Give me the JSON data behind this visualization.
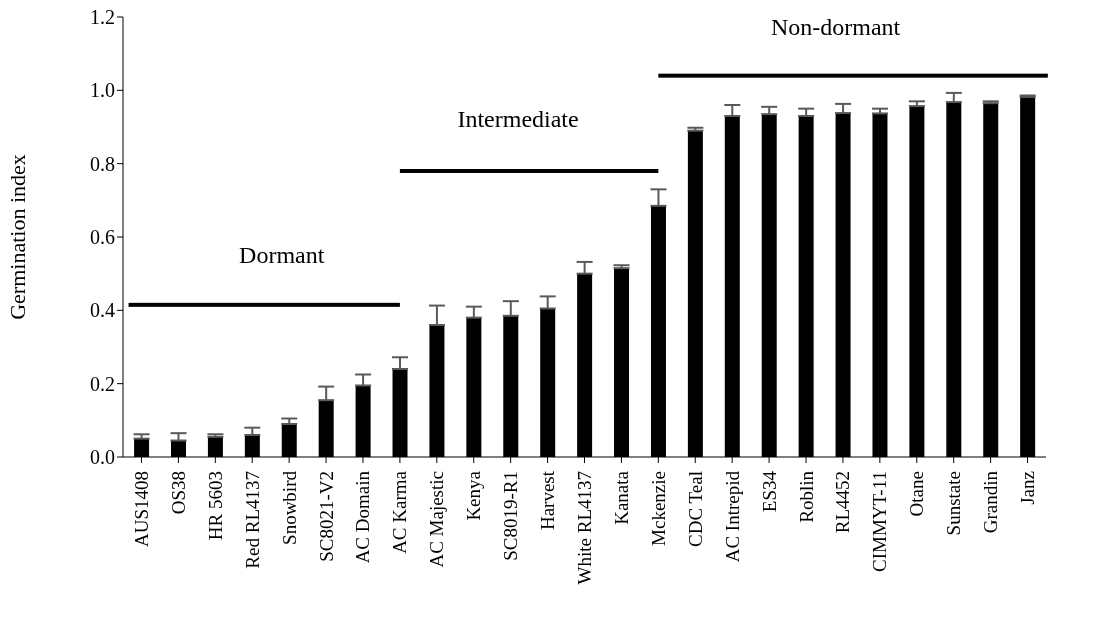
{
  "chart_data": {
    "type": "bar",
    "ylabel": "Germination index",
    "categories": [
      "AUS1408",
      "OS38",
      "HR 5603",
      "Red RL4137",
      "Snowbird",
      "SC8021-V2",
      "AC Domain",
      "AC Karma",
      "AC Majestic",
      "Kenya",
      "SC8019-R1",
      "Harvest",
      "White RL4137",
      "Kanata",
      "Mckenzie",
      "CDC Teal",
      "AC Intrepid",
      "ES34",
      "Roblin",
      "RL4452",
      "CIMMYT-11",
      "Otane",
      "Sunstate",
      "Grandin",
      "Janz"
    ],
    "values": [
      0.05,
      0.045,
      0.055,
      0.06,
      0.09,
      0.155,
      0.195,
      0.24,
      0.36,
      0.38,
      0.385,
      0.405,
      0.5,
      0.515,
      0.685,
      0.89,
      0.93,
      0.935,
      0.93,
      0.938,
      0.937,
      0.957,
      0.968,
      0.965,
      0.982
    ],
    "errors": [
      [
        0.05,
        0.062
      ],
      [
        0.045,
        0.065
      ],
      [
        0.055,
        0.062
      ],
      [
        0.06,
        0.08
      ],
      [
        0.09,
        0.105
      ],
      [
        0.155,
        0.192
      ],
      [
        0.195,
        0.225
      ],
      [
        0.24,
        0.272
      ],
      [
        0.36,
        0.413
      ],
      [
        0.38,
        0.41
      ],
      [
        0.385,
        0.425
      ],
      [
        0.405,
        0.438
      ],
      [
        0.5,
        0.532
      ],
      [
        0.515,
        0.523
      ],
      [
        0.685,
        0.73
      ],
      [
        0.89,
        0.898
      ],
      [
        0.93,
        0.96
      ],
      [
        0.935,
        0.955
      ],
      [
        0.93,
        0.95
      ],
      [
        0.938,
        0.963
      ],
      [
        0.937,
        0.95
      ],
      [
        0.957,
        0.97
      ],
      [
        0.968,
        0.993
      ],
      [
        0.965,
        0.97
      ],
      [
        0.982,
        0.986
      ]
    ],
    "color": "#000000",
    "ylim": [
      0,
      1.2
    ],
    "yticks": [
      {
        "value": 0,
        "label": "0.0"
      },
      {
        "value": 0.2,
        "label": "0.2"
      },
      {
        "value": 0.4,
        "label": "0.4"
      },
      {
        "value": 0.6,
        "label": "0.6"
      },
      {
        "value": 0.8,
        "label": "0.8"
      },
      {
        "value": 1,
        "label": "1.0"
      },
      {
        "value": 1.2,
        "label": "1.2"
      }
    ],
    "grid": false,
    "legend": false,
    "annotations": [
      "Dormant",
      "Intermediate",
      "Non-dormant"
    ]
  }
}
